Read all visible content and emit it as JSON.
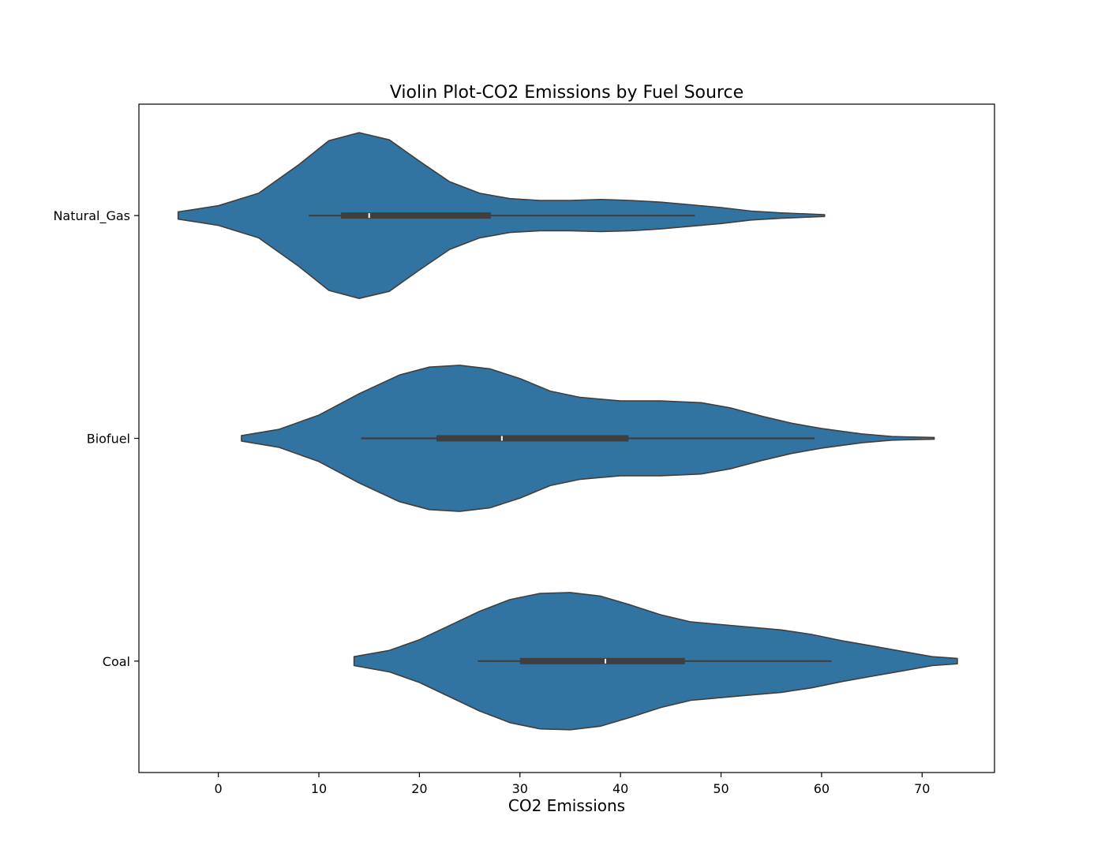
{
  "chart_data": {
    "type": "violin",
    "title": "Violin Plot-CO2 Emissions by Fuel Source",
    "xlabel": "CO2 Emissions",
    "ylabel": "",
    "xlim": [
      -7.9,
      77.2
    ],
    "xticks": [
      0,
      10,
      20,
      30,
      40,
      50,
      60,
      70
    ],
    "categories": [
      "Natural_Gas",
      "Biofuel",
      "Coal"
    ],
    "orientation": "horizontal",
    "grid": false,
    "color": "#3274a1",
    "edge_color": "#3f3f3f",
    "violins": [
      {
        "category": "Natural_Gas",
        "whisker_low": 9.0,
        "q1": 12.2,
        "median": 15.0,
        "q3": 27.1,
        "whisker_high": 47.4,
        "density": [
          [
            -4.0,
            0.04
          ],
          [
            0,
            0.11
          ],
          [
            4,
            0.25
          ],
          [
            8,
            0.57
          ],
          [
            11,
            0.84
          ],
          [
            14,
            0.93
          ],
          [
            17,
            0.85
          ],
          [
            20,
            0.61
          ],
          [
            23,
            0.38
          ],
          [
            26,
            0.25
          ],
          [
            29,
            0.19
          ],
          [
            32,
            0.17
          ],
          [
            35,
            0.17
          ],
          [
            38,
            0.18
          ],
          [
            41,
            0.17
          ],
          [
            44,
            0.15
          ],
          [
            47,
            0.12
          ],
          [
            50,
            0.09
          ],
          [
            53,
            0.05
          ],
          [
            56,
            0.03
          ],
          [
            60.3,
            0.01
          ]
        ]
      },
      {
        "category": "Biofuel",
        "whisker_low": 14.2,
        "q1": 21.7,
        "median": 28.2,
        "q3": 40.8,
        "whisker_high": 59.3,
        "density": [
          [
            2.3,
            0.03
          ],
          [
            6,
            0.1
          ],
          [
            10,
            0.26
          ],
          [
            14,
            0.5
          ],
          [
            18,
            0.71
          ],
          [
            21,
            0.8
          ],
          [
            24,
            0.82
          ],
          [
            27,
            0.78
          ],
          [
            30,
            0.67
          ],
          [
            33,
            0.53
          ],
          [
            36,
            0.46
          ],
          [
            40,
            0.42
          ],
          [
            44,
            0.42
          ],
          [
            48,
            0.4
          ],
          [
            51,
            0.34
          ],
          [
            54,
            0.25
          ],
          [
            57,
            0.17
          ],
          [
            60,
            0.11
          ],
          [
            64,
            0.05
          ],
          [
            67,
            0.02
          ],
          [
            71.2,
            0.01
          ]
        ]
      },
      {
        "category": "Coal",
        "whisker_low": 25.8,
        "q1": 30.0,
        "median": 38.5,
        "q3": 46.4,
        "whisker_high": 61.0,
        "density": [
          [
            13.5,
            0.05
          ],
          [
            17,
            0.12
          ],
          [
            20,
            0.24
          ],
          [
            23,
            0.4
          ],
          [
            26,
            0.56
          ],
          [
            29,
            0.69
          ],
          [
            32,
            0.76
          ],
          [
            35,
            0.77
          ],
          [
            38,
            0.73
          ],
          [
            41,
            0.63
          ],
          [
            44,
            0.52
          ],
          [
            47,
            0.44
          ],
          [
            50,
            0.41
          ],
          [
            53,
            0.38
          ],
          [
            56,
            0.35
          ],
          [
            59,
            0.3
          ],
          [
            62,
            0.23
          ],
          [
            65,
            0.17
          ],
          [
            68,
            0.11
          ],
          [
            71,
            0.05
          ],
          [
            73.5,
            0.03
          ]
        ]
      }
    ]
  }
}
